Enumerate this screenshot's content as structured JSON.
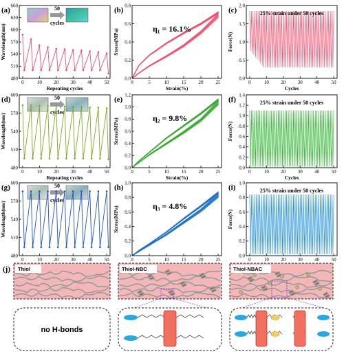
{
  "chart_data": [
    {
      "id": "a",
      "type": "line",
      "panel_label": "(a)",
      "ylabel": "Wavelength(nm)",
      "xlabel": "Repeating cycles",
      "xlim": [
        -2,
        52
      ],
      "ylim": [
        480,
        660
      ],
      "xticks": [
        "0",
        "10",
        "20",
        "30",
        "40",
        "50"
      ],
      "yticks": [
        "480",
        "510",
        "540",
        "570",
        "600",
        "630",
        "660"
      ],
      "inset_label": "50",
      "inset_sublabel": "cycles",
      "color": "#f0506e",
      "x": [
        0,
        1,
        5,
        6,
        10,
        11,
        15,
        16,
        20,
        21,
        25,
        26,
        30,
        31,
        35,
        36,
        40,
        41,
        45,
        46,
        50,
        51
      ],
      "y": [
        588,
        500,
        577,
        500,
        562,
        500,
        557,
        500,
        553,
        500,
        552,
        500,
        550,
        500,
        549,
        500,
        547,
        500,
        545,
        500,
        542,
        492
      ]
    },
    {
      "id": "b",
      "type": "line",
      "panel_label": "(b)",
      "ylabel": "Stress(MPa)",
      "xlabel": "Strain(%)",
      "xlim": [
        0,
        26
      ],
      "ylim": [
        0,
        0.8
      ],
      "xticks": [
        "0",
        "5",
        "10",
        "15",
        "20",
        "25"
      ],
      "yticks": [
        "0.0",
        "0.2",
        "0.4",
        "0.6",
        "0.8"
      ],
      "annotation": "η₁ = 16.1%",
      "color": "#f0506e",
      "loading": {
        "x": [
          0,
          2,
          5,
          10,
          15,
          20,
          25
        ],
        "y": [
          0,
          0.14,
          0.25,
          0.38,
          0.49,
          0.59,
          0.71
        ]
      },
      "unloading": {
        "x": [
          25,
          20,
          15,
          10,
          5,
          2,
          0
        ],
        "y": [
          0.71,
          0.52,
          0.37,
          0.25,
          0.14,
          0.06,
          0
        ]
      }
    },
    {
      "id": "c",
      "type": "line",
      "panel_label": "(c)",
      "ylabel": "Force(N)",
      "xlabel": "Cycles",
      "xlim": [
        -2,
        52
      ],
      "ylim": [
        0,
        2.0
      ],
      "xticks": [
        "0",
        "10",
        "20",
        "30",
        "40",
        "50"
      ],
      "yticks": [
        "0.0",
        "0.5",
        "1.0",
        "1.5",
        "2.0"
      ],
      "annotation": "25% strain under 50 cycles",
      "color": "#f0506e",
      "cycles": 50,
      "peak": 1.85,
      "start_min": 0.75,
      "end_min": 0.3
    },
    {
      "id": "d",
      "type": "line",
      "panel_label": "(d)",
      "ylabel": "Wavelength(nm)",
      "xlabel": "Repeating cycles",
      "xlim": [
        -2,
        52
      ],
      "ylim": [
        480,
        600
      ],
      "xticks": [
        "0",
        "10",
        "20",
        "30",
        "40",
        "50"
      ],
      "yticks": [
        "480",
        "510",
        "540",
        "570",
        "600"
      ],
      "inset_label": "50",
      "inset_sublabel": "cycles",
      "color": "#7aaa1e",
      "x": [
        0,
        1,
        5,
        6,
        10,
        11,
        15,
        16,
        20,
        21,
        25,
        26,
        30,
        31,
        35,
        36,
        40,
        41,
        45,
        46,
        50,
        51
      ],
      "y": [
        583,
        495,
        583,
        495,
        582,
        495,
        582,
        495,
        582,
        495,
        581,
        495,
        580,
        495,
        580,
        495,
        579,
        495,
        579,
        495,
        578,
        494
      ]
    },
    {
      "id": "e",
      "type": "line",
      "panel_label": "(e)",
      "ylabel": "Stress(MPa)",
      "xlabel": "Strain(%)",
      "xlim": [
        0,
        26
      ],
      "ylim": [
        0,
        1.2
      ],
      "xticks": [
        "0",
        "5",
        "10",
        "15",
        "20",
        "25"
      ],
      "yticks": [
        "0.0",
        "0.2",
        "0.4",
        "0.6",
        "0.8",
        "1.0",
        "1.2"
      ],
      "annotation": "η₂ = 9.8%",
      "color": "#3aa832",
      "loading": {
        "x": [
          0,
          2,
          5,
          10,
          15,
          20,
          25
        ],
        "y": [
          0,
          0.11,
          0.25,
          0.48,
          0.68,
          0.88,
          1.1
        ]
      },
      "unloading": {
        "x": [
          25,
          20,
          15,
          10,
          5,
          2,
          0
        ],
        "y": [
          1.1,
          0.81,
          0.6,
          0.41,
          0.22,
          0.09,
          0
        ]
      }
    },
    {
      "id": "f",
      "type": "line",
      "panel_label": "(f)",
      "ylabel": "Force(N)",
      "xlabel": "Cycles",
      "xlim": [
        -2,
        52
      ],
      "ylim": [
        0,
        1.4
      ],
      "xticks": [
        "0",
        "10",
        "20",
        "30",
        "40",
        "50"
      ],
      "yticks": [
        "0.0",
        "0.2",
        "0.4",
        "0.6",
        "0.8",
        "1.0",
        "1.2",
        "1.4"
      ],
      "annotation": "25% strain under 50 cycles",
      "color": "#27b327",
      "cycles": 50,
      "peak": 1.1,
      "start_min": 0.02,
      "end_min": 0.02
    },
    {
      "id": "g",
      "type": "line",
      "panel_label": "(g)",
      "ylabel": "Wavelength(nm)",
      "xlabel": "Repeating cycles",
      "xlim": [
        -2,
        52
      ],
      "ylim": [
        480,
        600
      ],
      "xticks": [
        "0",
        "10",
        "20",
        "30",
        "40",
        "50"
      ],
      "yticks": [
        "480",
        "510",
        "540",
        "570",
        "600"
      ],
      "inset_label": "50",
      "inset_sublabel": "cycles",
      "color": "#1d4fd8",
      "x": [
        0,
        1,
        5,
        6,
        10,
        11,
        15,
        16,
        20,
        21,
        25,
        26,
        30,
        31,
        35,
        36,
        40,
        41,
        45,
        46,
        50,
        51
      ],
      "y": [
        586,
        494,
        586,
        494,
        586,
        494,
        586,
        494,
        586,
        494,
        586,
        494,
        586,
        494,
        586,
        494,
        586,
        494,
        586,
        494,
        586,
        494
      ]
    },
    {
      "id": "h",
      "type": "line",
      "panel_label": "(h)",
      "ylabel": "Stress(MPa)",
      "xlabel": "Strain(%)",
      "xlim": [
        0,
        26
      ],
      "ylim": [
        0,
        1.0
      ],
      "xticks": [
        "0",
        "5",
        "10",
        "15",
        "20",
        "25"
      ],
      "yticks": [
        "0.0",
        "0.2",
        "0.4",
        "0.6",
        "0.8",
        "1.0"
      ],
      "annotation": "η₃ = 4.8%",
      "color": "#1e6fc8",
      "loading": {
        "x": [
          0,
          2,
          5,
          10,
          15,
          20,
          25
        ],
        "y": [
          0,
          0.07,
          0.16,
          0.32,
          0.5,
          0.67,
          0.85
        ]
      },
      "unloading": {
        "x": [
          25,
          20,
          15,
          10,
          5,
          2,
          0
        ],
        "y": [
          0.85,
          0.64,
          0.47,
          0.3,
          0.15,
          0.06,
          0
        ]
      }
    },
    {
      "id": "i",
      "type": "line",
      "panel_label": "(i)",
      "ylabel": "Force(N)",
      "xlabel": "Cycles",
      "xlim": [
        -2,
        52
      ],
      "ylim": [
        0,
        1.0
      ],
      "xticks": [
        "0",
        "10",
        "20",
        "30",
        "40",
        "50"
      ],
      "yticks": [
        "0.0",
        "0.2",
        "0.4",
        "0.6",
        "0.8",
        "1.0"
      ],
      "annotation": "25% strain under 50 cycles",
      "color": "#1a8cd8",
      "cycles": 50,
      "peak": 0.84,
      "start_min": 0.02,
      "end_min": 0.02
    }
  ],
  "schematic": {
    "panel_label": "(j)",
    "boxes": [
      {
        "label": "Thiol",
        "detail": "no H-bonds"
      },
      {
        "label": "Thiol-NBC",
        "detail": ""
      },
      {
        "label": "Thiol-NBAC",
        "detail": ""
      }
    ],
    "colors": {
      "fill": "#f4b6b6",
      "chain": "#8a9a9a",
      "hbond": "#e02020",
      "sulfur": "#f0c020",
      "end_group": "#29a8e0",
      "highlight": "#9a40d8"
    }
  }
}
